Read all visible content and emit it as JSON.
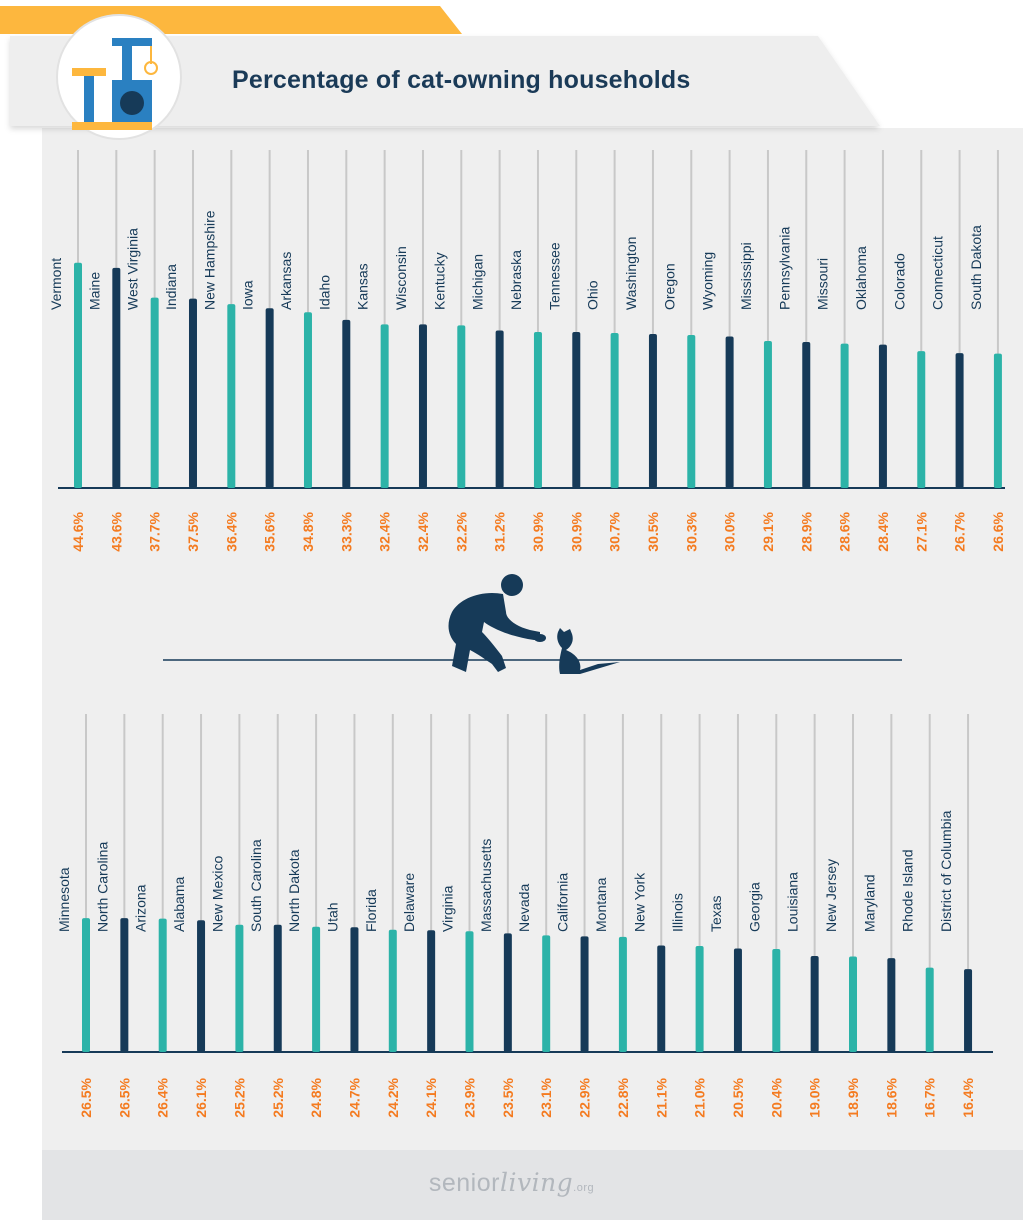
{
  "title": "Percentage of cat-owning households",
  "colors": {
    "teal": "#2cb3a8",
    "navy": "#163a58",
    "orange": "#f47b20",
    "yellow": "#fdb73e",
    "stem": "#c8c8c8",
    "panel": "#efefef"
  },
  "icons": {
    "header": "cat-tree-icon",
    "divider": "person-petting-cat-icon"
  },
  "footer": {
    "logo_prefix": "senior",
    "logo_script": "living",
    "logo_suffix": ".org"
  },
  "chart_data": [
    {
      "type": "bar",
      "categories": [
        "Vermont",
        "Maine",
        "West Virginia",
        "Indiana",
        "New Hampshire",
        "Iowa",
        "Arkansas",
        "Idaho",
        "Kansas",
        "Wisconsin",
        "Kentucky",
        "Michigan",
        "Nebraska",
        "Tennessee",
        "Ohio",
        "Washington",
        "Oregon",
        "Wyoming",
        "Mississippi",
        "Pennsylvania",
        "Missouri",
        "Oklahoma",
        "Colorado",
        "Connecticut",
        "South Dakota"
      ],
      "values": [
        44.6,
        43.6,
        37.7,
        37.5,
        36.4,
        35.6,
        34.8,
        33.3,
        32.4,
        32.4,
        32.2,
        31.2,
        30.9,
        30.9,
        30.7,
        30.5,
        30.3,
        30.0,
        29.1,
        28.9,
        28.6,
        28.4,
        27.1,
        26.7,
        26.6
      ],
      "labels": [
        "44.6%",
        "43.6%",
        "37.7%",
        "37.5%",
        "36.4%",
        "35.6%",
        "34.8%",
        "33.3%",
        "32.4%",
        "32.4%",
        "32.2%",
        "31.2%",
        "30.9%",
        "30.9%",
        "30.7%",
        "30.5%",
        "30.3%",
        "30.0%",
        "29.1%",
        "28.9%",
        "28.6%",
        "28.4%",
        "27.1%",
        "26.7%",
        "26.6%"
      ],
      "ylim": [
        0,
        50
      ]
    },
    {
      "type": "bar",
      "categories": [
        "Minnesota",
        "North Carolina",
        "Arizona",
        "Alabama",
        "New Mexico",
        "South Carolina",
        "North Dakota",
        "Utah",
        "Florida",
        "Delaware",
        "Virginia",
        "Massachusetts",
        "Nevada",
        "California",
        "Montana",
        "New York",
        "Illinois",
        "Texas",
        "Georgia",
        "Louisiana",
        "New Jersey",
        "Maryland",
        "Rhode Island",
        "District of Columbia"
      ],
      "values": [
        26.5,
        26.5,
        26.4,
        26.1,
        25.2,
        25.2,
        24.8,
        24.7,
        24.2,
        24.1,
        23.9,
        23.5,
        23.1,
        22.9,
        22.8,
        21.1,
        21.0,
        20.5,
        20.4,
        19.0,
        18.9,
        18.6,
        16.7,
        16.4
      ],
      "labels": [
        "26.5%",
        "26.5%",
        "26.4%",
        "26.1%",
        "25.2%",
        "25.2%",
        "24.8%",
        "24.7%",
        "24.2%",
        "24.1%",
        "23.9%",
        "23.5%",
        "23.1%",
        "22.9%",
        "22.8%",
        "21.1%",
        "21.0%",
        "20.5%",
        "20.4%",
        "19.0%",
        "18.9%",
        "18.6%",
        "16.7%",
        "16.4%"
      ],
      "ylim": [
        0,
        50
      ]
    }
  ]
}
